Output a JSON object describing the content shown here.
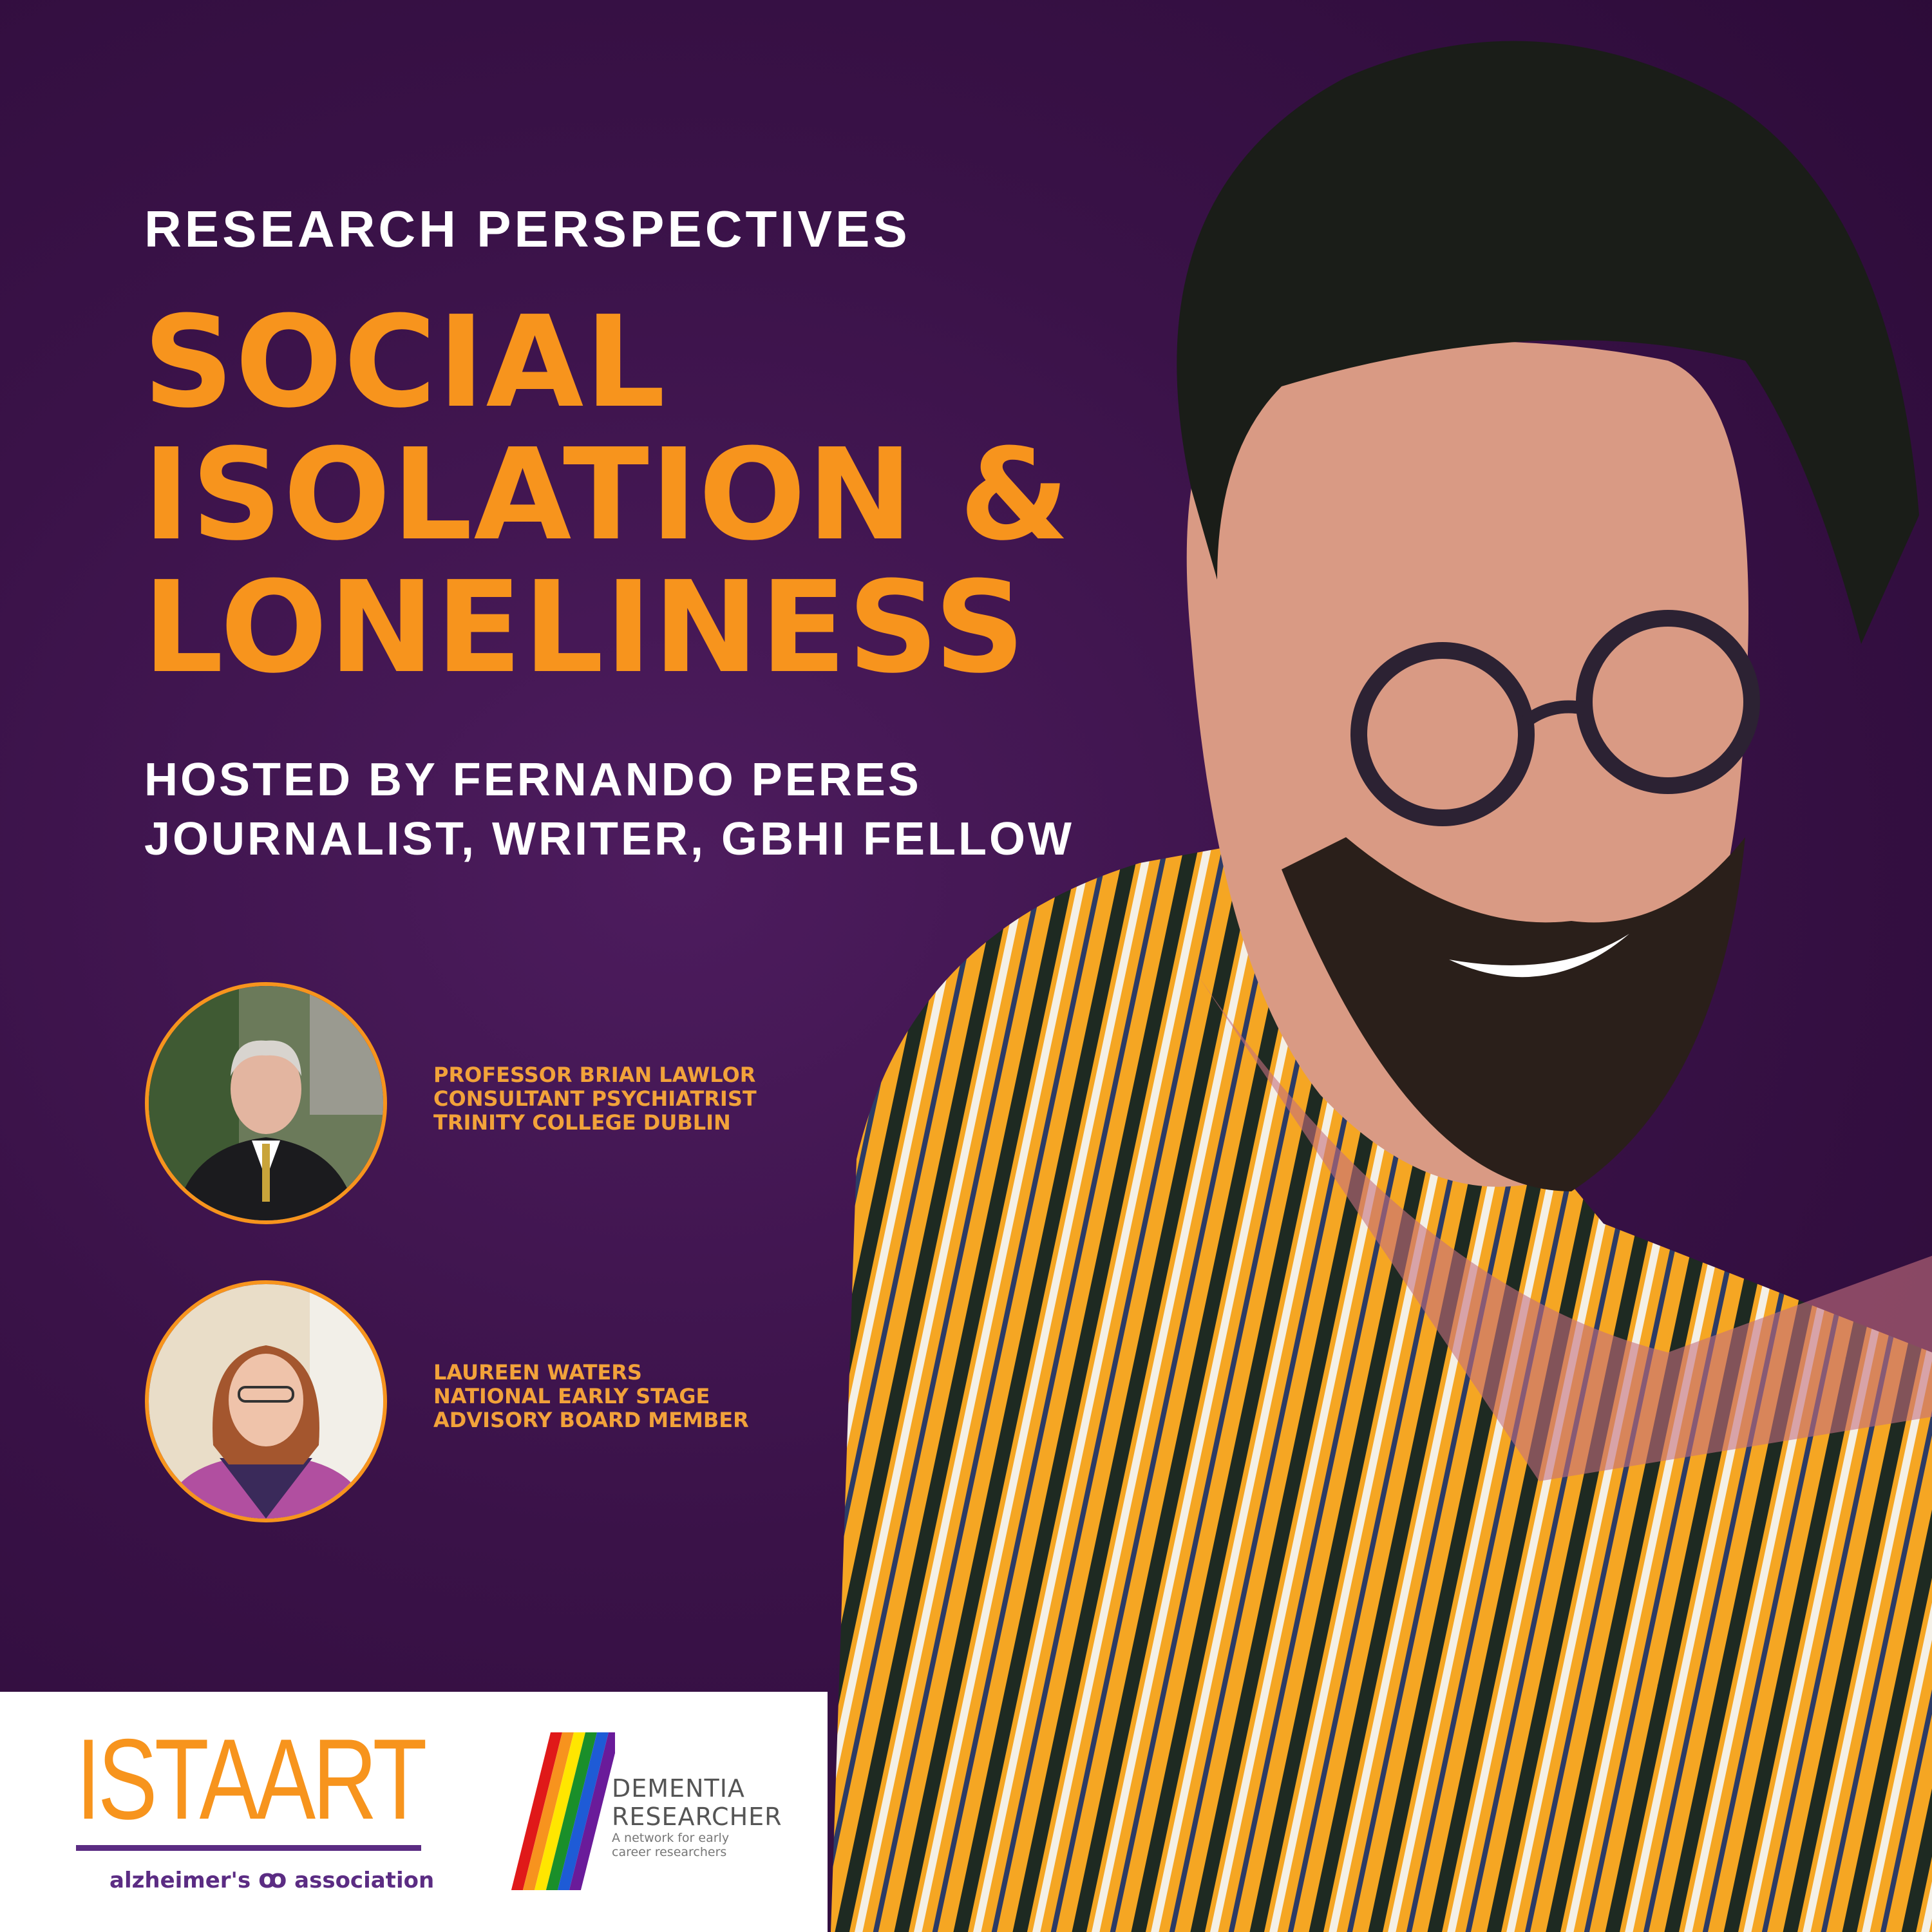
{
  "header": {
    "kicker": "RESEARCH PERSPECTIVES",
    "title_lines": [
      "SOCIAL",
      "ISOLATION &",
      "LONELINESS"
    ],
    "host_line": "HOSTED BY FERNANDO PERES",
    "host_role": "JOURNALIST, WRITER, GBHI FELLOW"
  },
  "guests": [
    {
      "lines": [
        "PROFESSOR BRIAN LAWLOR",
        "CONSULTANT PSYCHIATRIST",
        "TRINITY COLLEGE DUBLIN"
      ]
    },
    {
      "lines": [
        "LAUREEN WATERS",
        "NATIONAL EARLY STAGE",
        "ADVISORY BOARD MEMBER"
      ]
    }
  ],
  "footer": {
    "istaart": "ISTAART",
    "alz_left": "alzheimer's",
    "alz_right": "association",
    "dr_title_1": "DEMENTIA",
    "dr_title_2": "RESEARCHER",
    "dr_tagline_1": "A network for early",
    "dr_tagline_2": "career researchers"
  },
  "colors": {
    "accent": "#f7941d",
    "background": "#3a1248",
    "alz_purple": "#5b2c83"
  }
}
